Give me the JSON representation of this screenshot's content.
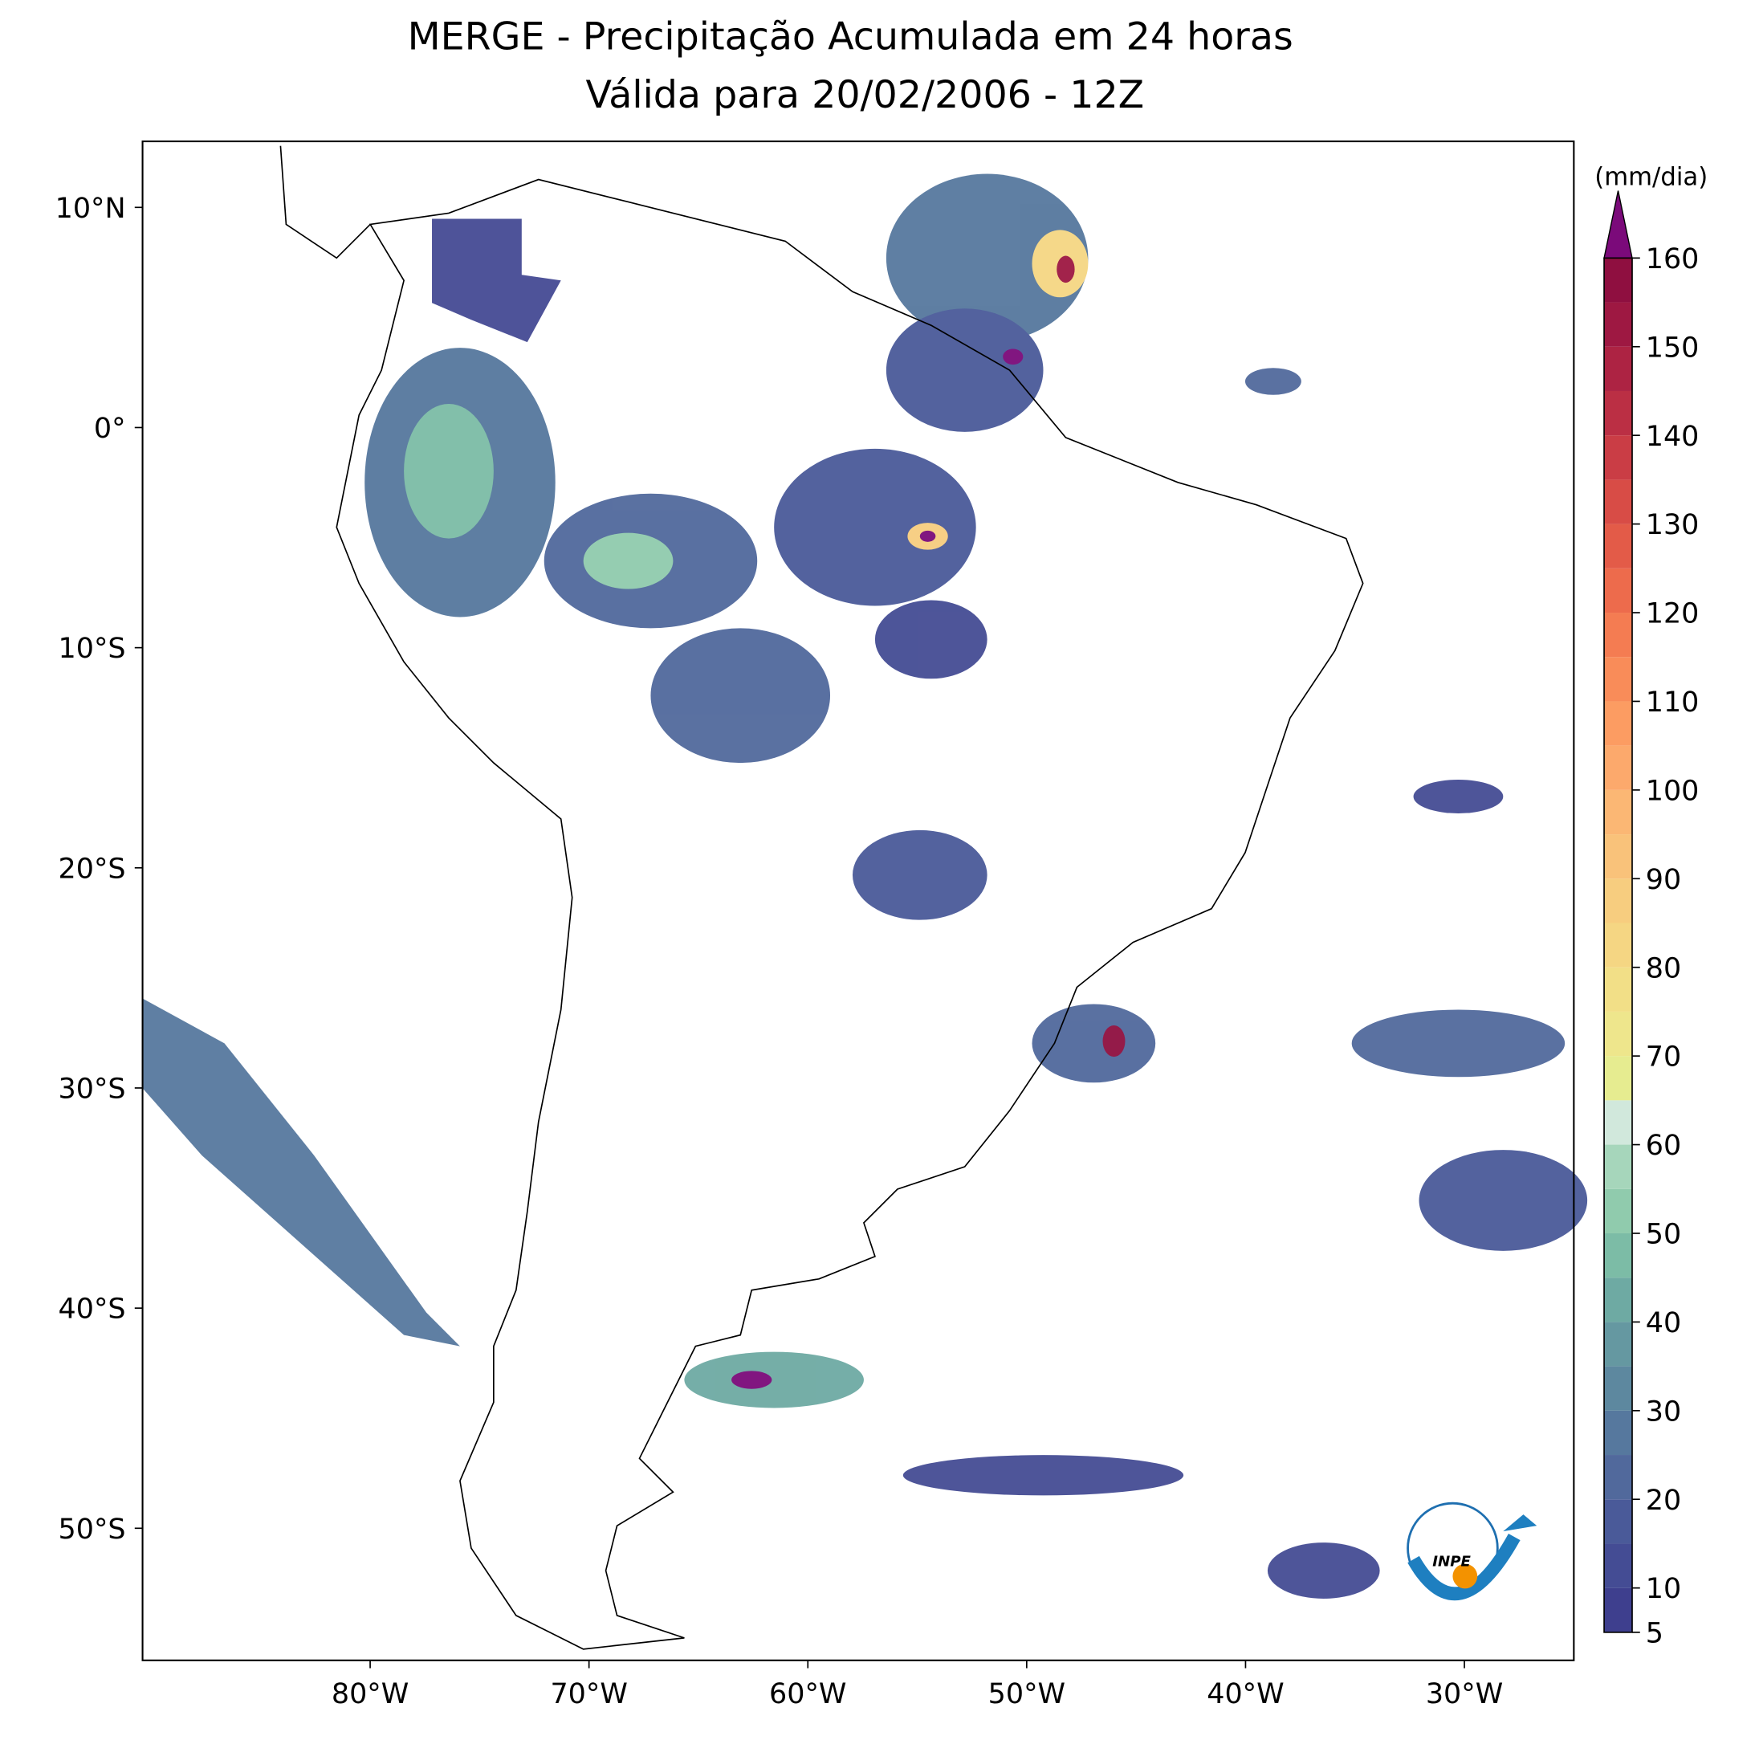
{
  "chart_data": {
    "type": "contourmap",
    "title": "MERGE - Precipitação Acumulada em 24 horas",
    "subtitle": "Válida para 20/02/2006 - 12Z",
    "xlim": [
      -90.4,
      -25
    ],
    "ylim": [
      -56,
      13
    ],
    "xticks": [
      {
        "value": -80,
        "label": "80°W"
      },
      {
        "value": -70,
        "label": "70°W"
      },
      {
        "value": -60,
        "label": "60°W"
      },
      {
        "value": -50,
        "label": "50°W"
      },
      {
        "value": -40,
        "label": "40°W"
      },
      {
        "value": -30,
        "label": "30°W"
      }
    ],
    "yticks": [
      {
        "value": 10,
        "label": "10°N"
      },
      {
        "value": 0,
        "label": "0°"
      },
      {
        "value": -10,
        "label": "10°S"
      },
      {
        "value": -20,
        "label": "20°S"
      },
      {
        "value": -30,
        "label": "30°S"
      },
      {
        "value": -40,
        "label": "40°S"
      },
      {
        "value": -50,
        "label": "50°S"
      }
    ],
    "colorbar": {
      "label": "(mm/dia)",
      "lim": [
        5,
        160
      ],
      "ticks": [
        5,
        10,
        20,
        30,
        40,
        50,
        60,
        70,
        80,
        90,
        100,
        110,
        120,
        130,
        140,
        150,
        160
      ],
      "levels": [
        5,
        10,
        15,
        20,
        25,
        30,
        35,
        40,
        45,
        50,
        55,
        60,
        65,
        70,
        75,
        80,
        85,
        90,
        95,
        100,
        105,
        110,
        115,
        120,
        125,
        130,
        135,
        140,
        145,
        150,
        155,
        160
      ],
      "colors": [
        "#3e3f8e",
        "#444c94",
        "#4a5a99",
        "#51699c",
        "#56789e",
        "#5d889f",
        "#6598a1",
        "#6eaaa3",
        "#7cbca6",
        "#90cbad",
        "#a6d6bb",
        "#d1e8dc",
        "#e6ec90",
        "#eee68c",
        "#f2df87",
        "#f5d683",
        "#f7cd7f",
        "#f9c27a",
        "#fbb774",
        "#fca96c",
        "#fc9c62",
        "#f98c59",
        "#f47c52",
        "#ed6b4c",
        "#e35b48",
        "#d84c46",
        "#ca3d45",
        "#bb2f44",
        "#ad2343",
        "#9e1842",
        "#8f0f40"
      ],
      "extend": "max",
      "over_color": "#7b0a7a"
    },
    "logo_text": "INPE"
  }
}
